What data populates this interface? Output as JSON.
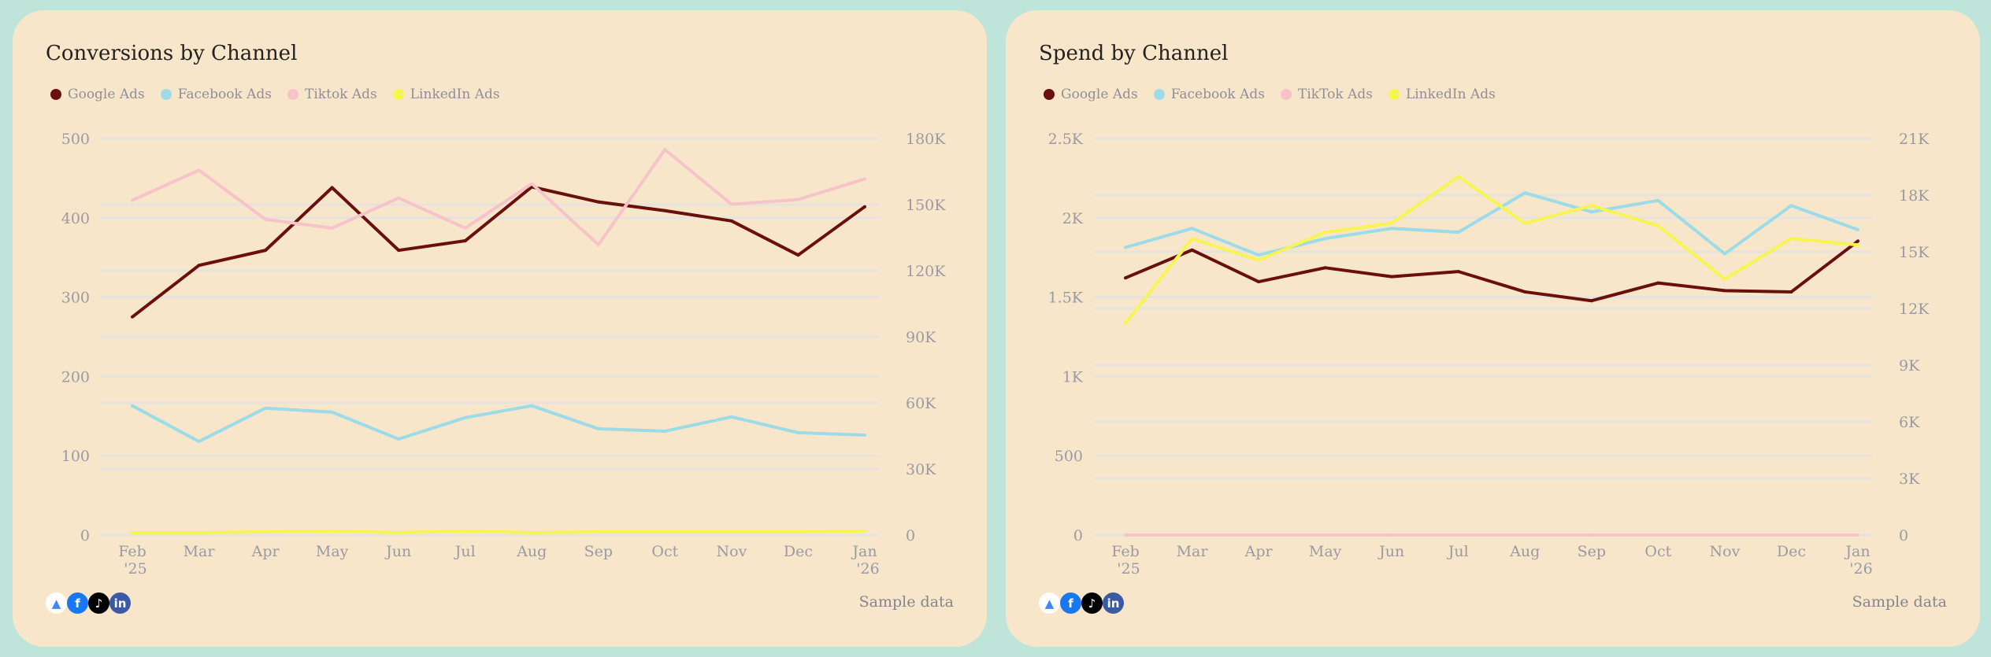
{
  "colors": {
    "background": "#bfe5db",
    "card": "#f8e6cb",
    "google": "#6b0f0a",
    "facebook": "#9cdbe8",
    "tiktok": "#f5c3c8",
    "linkedin": "#f7f552",
    "grid": "#e6e3df",
    "axis_text": "#9a9aa3"
  },
  "footer_icons": [
    "google-ads-icon",
    "facebook-icon",
    "tiktok-icon",
    "linkedin-icon"
  ],
  "chart_data": [
    {
      "type": "line",
      "title": "Conversions by Channel",
      "footer": "Sample data",
      "categories": [
        "Feb",
        "Mar",
        "Apr",
        "May",
        "Jun",
        "Jul",
        "Aug",
        "Sep",
        "Oct",
        "Nov",
        "Dec",
        "Jan"
      ],
      "category_sublabels": {
        "0": "'25",
        "11": "'26"
      },
      "y_left": {
        "range": [
          0,
          500
        ],
        "ticks": [
          "0",
          "100",
          "200",
          "300",
          "400",
          "500"
        ]
      },
      "y_right": {
        "range": [
          0,
          180000
        ],
        "ticks": [
          "0",
          "30K",
          "60K",
          "90K",
          "120K",
          "150K",
          "180K"
        ]
      },
      "grid": true,
      "legend_position": "top-left",
      "series": [
        {
          "name": "Google Ads",
          "color": "#6b0f0a",
          "values": [
            275,
            340,
            359,
            438,
            359,
            371,
            439,
            420,
            409,
            396,
            353,
            414
          ]
        },
        {
          "name": "Facebook Ads",
          "color": "#9cdbe8",
          "values": [
            163,
            118,
            160,
            155,
            121,
            148,
            163,
            134,
            131,
            149,
            129,
            126
          ]
        },
        {
          "name": "Tiktok Ads",
          "color": "#f5c3c8",
          "values": [
            422,
            460,
            398,
            387,
            425,
            387,
            443,
            366,
            486,
            417,
            423,
            449
          ]
        },
        {
          "name": "LinkedIn Ads",
          "color": "#f7f552",
          "values": [
            3,
            3,
            4,
            5,
            3,
            5,
            3,
            4,
            4,
            4,
            4,
            5
          ]
        }
      ]
    },
    {
      "type": "line",
      "title": "Spend by Channel",
      "footer": "Sample data",
      "categories": [
        "Feb",
        "Mar",
        "Apr",
        "May",
        "Jun",
        "Jul",
        "Aug",
        "Sep",
        "Oct",
        "Nov",
        "Dec",
        "Jan"
      ],
      "category_sublabels": {
        "0": "'25",
        "11": "'26"
      },
      "y_left": {
        "range": [
          0,
          2500
        ],
        "ticks": [
          "0",
          "500",
          "1K",
          "1.5K",
          "2K",
          "2.5K"
        ]
      },
      "y_right": {
        "range": [
          0,
          21000
        ],
        "ticks": [
          "0",
          "3K",
          "6K",
          "9K",
          "12K",
          "15K",
          "18K",
          "21K"
        ]
      },
      "grid": true,
      "legend_position": "top-left",
      "series": [
        {
          "name": "Google Ads",
          "color": "#6b0f0a",
          "values": [
            1621,
            1797,
            1597,
            1685,
            1629,
            1661,
            1533,
            1477,
            1589,
            1541,
            1533,
            1853
          ]
        },
        {
          "name": "Facebook Ads",
          "color": "#9cdbe8",
          "values": [
            1813,
            1933,
            1765,
            1869,
            1933,
            1909,
            2157,
            2037,
            2109,
            1773,
            2077,
            1925
          ]
        },
        {
          "name": "TikTok Ads",
          "color": "#f5c3c8",
          "values": [
            0,
            0,
            0,
            0,
            0,
            0,
            0,
            0,
            0,
            0,
            0,
            0
          ]
        },
        {
          "name": "LinkedIn Ads",
          "color": "#f7f552",
          "values": [
            1334,
            1869,
            1733,
            1909,
            1965,
            2260,
            1965,
            2077,
            1949,
            1613,
            1869,
            1829
          ]
        }
      ]
    }
  ]
}
